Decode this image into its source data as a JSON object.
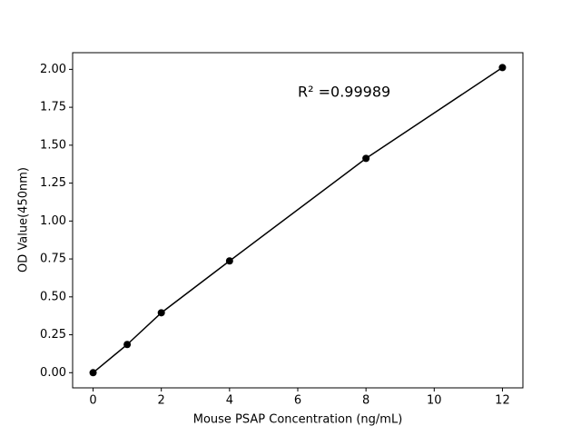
{
  "chart_data": {
    "type": "line",
    "xlabel": "Mouse PSAP Concentration (ng/mL)",
    "ylabel": "OD Value(450nm)",
    "annotation": "R² =0.99989",
    "x": [
      0,
      1,
      2,
      4,
      8,
      12
    ],
    "series": [
      {
        "color": "#000000",
        "values": [
          0.0,
          0.186,
          0.395,
          0.737,
          1.413,
          2.012
        ]
      }
    ],
    "xlim": [
      -0.6,
      12.6
    ],
    "ylim": [
      -0.1,
      2.11
    ],
    "xticks": [
      0,
      2,
      4,
      6,
      8,
      10,
      12
    ],
    "yticks": [
      {
        "value": 0,
        "label": "0.00"
      },
      {
        "value": 0.25,
        "label": "0.25"
      },
      {
        "value": 0.5,
        "label": "0.50"
      },
      {
        "value": 0.75,
        "label": "0.75"
      },
      {
        "value": 1,
        "label": "1.00"
      },
      {
        "value": 1.25,
        "label": "1.25"
      },
      {
        "value": 1.5,
        "label": "1.50"
      },
      {
        "value": 1.75,
        "label": "1.75"
      },
      {
        "value": 2,
        "label": "2.00"
      }
    ],
    "grid": false
  }
}
